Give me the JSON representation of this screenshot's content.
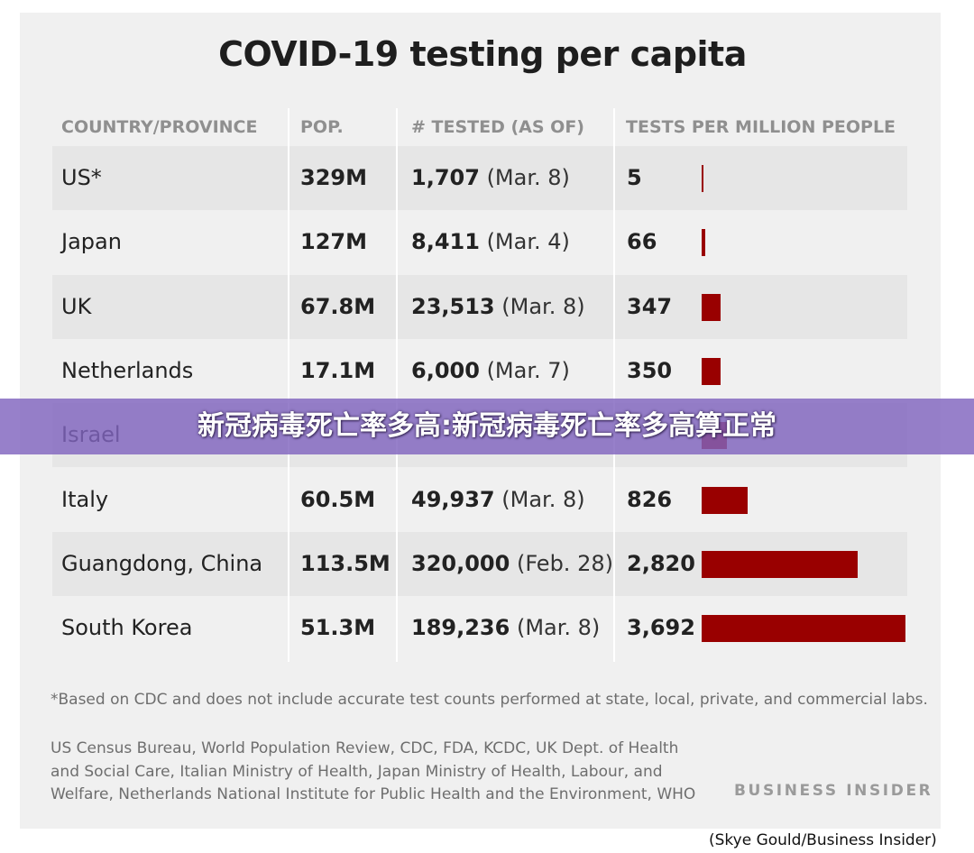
{
  "chart_data": {
    "type": "table",
    "title": "COVID-19 testing per capita",
    "columns": [
      "COUNTRY/PROVINCE",
      "POP.",
      "# TESTED (AS OF)",
      "TESTS PER MILLION PEOPLE"
    ],
    "rows": [
      {
        "country": "US*",
        "pop": "329M",
        "tested": "1,707",
        "as_of": "(Mar. 8)",
        "tpm_label": "5",
        "tpm": 5
      },
      {
        "country": "Japan",
        "pop": "127M",
        "tested": "8,411",
        "as_of": "(Mar. 4)",
        "tpm_label": "66",
        "tpm": 66
      },
      {
        "country": "UK",
        "pop": "67.8M",
        "tested": "23,513",
        "as_of": "(Mar. 8)",
        "tpm_label": "347",
        "tpm": 347
      },
      {
        "country": "Netherlands",
        "pop": "17.1M",
        "tested": "6,000",
        "as_of": "(Mar. 7)",
        "tpm_label": "350",
        "tpm": 350
      },
      {
        "country": "Israel",
        "pop": "",
        "tested": "",
        "as_of": "",
        "tpm_label": "",
        "tpm": 461
      },
      {
        "country": "Italy",
        "pop": "60.5M",
        "tested": "49,937",
        "as_of": "(Mar. 8)",
        "tpm_label": "826",
        "tpm": 826
      },
      {
        "country": "Guangdong, China",
        "pop": "113.5M",
        "tested": "320,000",
        "as_of": "(Feb. 28)",
        "tpm_label": "2,820",
        "tpm": 2820
      },
      {
        "country": "South Korea",
        "pop": "51.3M",
        "tested": "189,236",
        "as_of": "(Mar. 8)",
        "tpm_label": "3,692",
        "tpm": 3692
      }
    ],
    "bar_max": 3692,
    "bar_color": "#990000"
  },
  "footnote": "*Based on CDC and does not include accurate test counts performed at state, local, private, and commercial labs.",
  "sources": "US Census Bureau, World Population Review, CDC, FDA, KCDC, UK Dept. of Health and Social Care, Italian Ministry of Health, Japan Ministry of Health, Labour, and Welfare, Netherlands National Institute for Public Health and the Environment, WHO",
  "brand": "BUSINESS INSIDER",
  "credit": "(Skye Gould/Business Insider)",
  "overlay_text": "新冠病毒死亡率多高:新冠病毒死亡率多高算正常"
}
